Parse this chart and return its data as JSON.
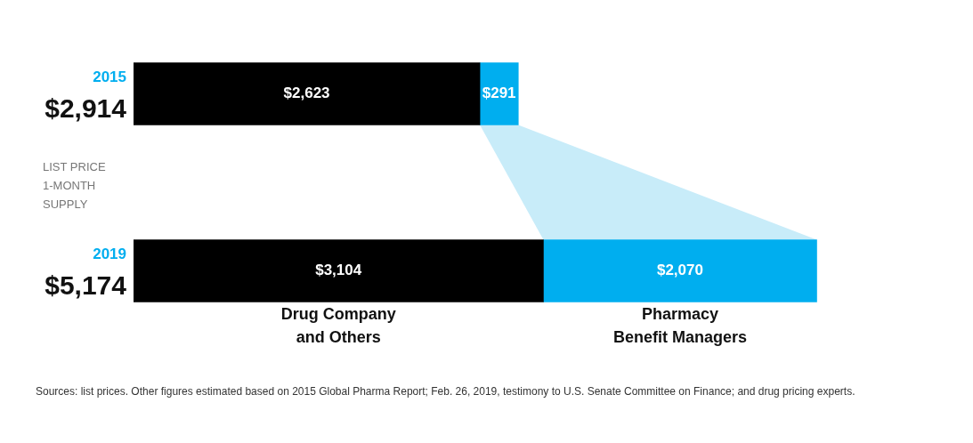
{
  "chart_data": {
    "type": "bar",
    "orientation": "horizontal",
    "stacked": true,
    "categories": [
      "2015",
      "2019"
    ],
    "totals": [
      "$2,914",
      "$5,174"
    ],
    "series": [
      {
        "name": "Drug Company and Others",
        "color": "#000000",
        "values": [
          2623,
          3104
        ],
        "value_labels": [
          "$2,623",
          "$3,104"
        ]
      },
      {
        "name": "Pharmacy Benefit Managers",
        "color": "#00aeef",
        "values": [
          291,
          2070
        ],
        "value_labels": [
          "$291",
          "$2,070"
        ]
      }
    ],
    "annotations": [
      "LIST PRICE\n1-MONTH\nSUPPLY",
      "Sources: list prices. Other figures estimated based on 2015 Global Pharma Report; Feb. 26, 2019, testimony to U.S. Senate Committee on Finance; and drug pricing experts."
    ]
  }
}
